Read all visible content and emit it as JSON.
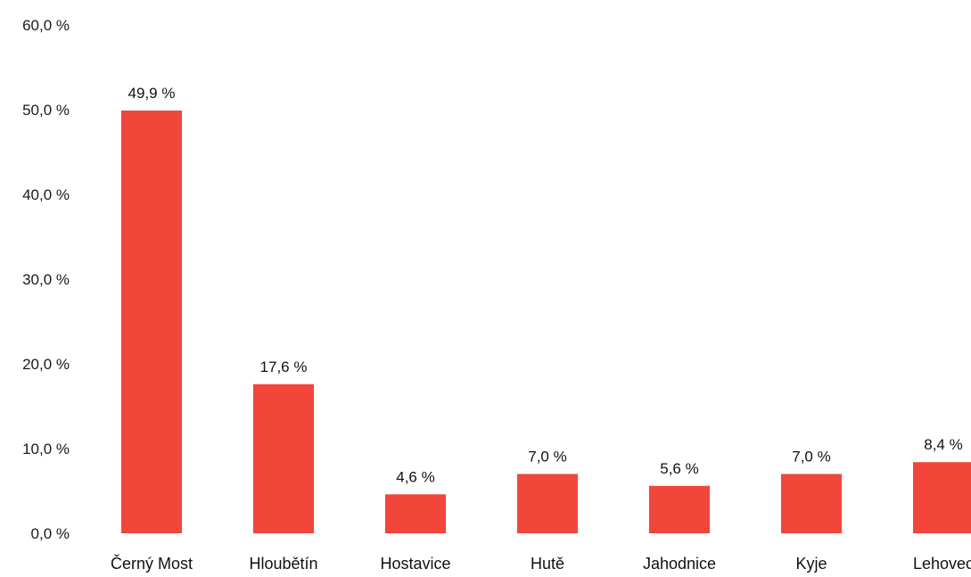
{
  "chart_data": {
    "type": "bar",
    "title": "",
    "xlabel": "",
    "ylabel": "",
    "categories": [
      "Černý Most",
      "Hloubětín",
      "Hostavice",
      "Hutě",
      "Jahodnice",
      "Kyje",
      "Lehovec"
    ],
    "values": [
      49.9,
      17.6,
      4.6,
      7.0,
      5.6,
      7.0,
      8.4
    ],
    "data_labels": [
      "49,9 %",
      "17,6 %",
      "4,6 %",
      "7,0 %",
      "5,6 %",
      "7,0 %",
      "8,4 %"
    ],
    "ylim": [
      0,
      60
    ],
    "yticks": [
      0,
      10,
      20,
      30,
      40,
      50,
      60
    ],
    "ytick_labels": [
      "0,0 %",
      "10,0 %",
      "20,0 %",
      "30,0 %",
      "40,0 %",
      "50,0 %",
      "60,0 %"
    ],
    "grid": false,
    "legend": "none",
    "bar_color": "#f2463a"
  }
}
